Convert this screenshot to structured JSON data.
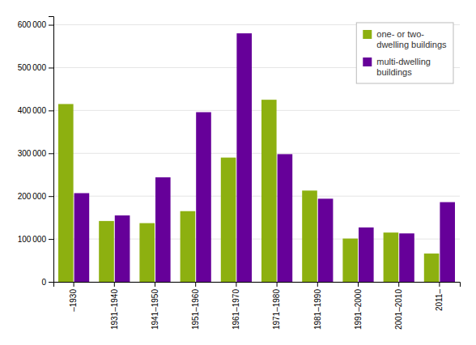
{
  "chart_data": {
    "type": "bar",
    "categories": [
      "–1930",
      "1931–1940",
      "1941–1950",
      "1951–1960",
      "1961–1970",
      "1971–1980",
      "1981–1990",
      "1991–2000",
      "2001–2010",
      "2011–"
    ],
    "series": [
      {
        "name": "one- or two-\ndwelling buildings",
        "color": "#8DB010",
        "values": [
          415000,
          142000,
          137000,
          165000,
          290000,
          425000,
          213000,
          101000,
          115000,
          66000
        ]
      },
      {
        "name": "multi-dwelling\nbuildings",
        "color": "#660099",
        "values": [
          207000,
          155000,
          244000,
          396000,
          580000,
          298000,
          194000,
          127000,
          113000,
          186000
        ]
      }
    ],
    "ylim": [
      0,
      620000
    ],
    "yticks": [
      0,
      {
        "value": 100000,
        "label": "100 000"
      },
      {
        "value": 200000,
        "label": "200 000"
      },
      {
        "value": 300000,
        "label": "300 000"
      },
      {
        "value": 400000,
        "label": "400 000"
      },
      {
        "value": 500000,
        "label": "500 000"
      },
      {
        "value": 600000,
        "label": "600 000"
      }
    ],
    "grid": true,
    "legend": "upper right"
  }
}
